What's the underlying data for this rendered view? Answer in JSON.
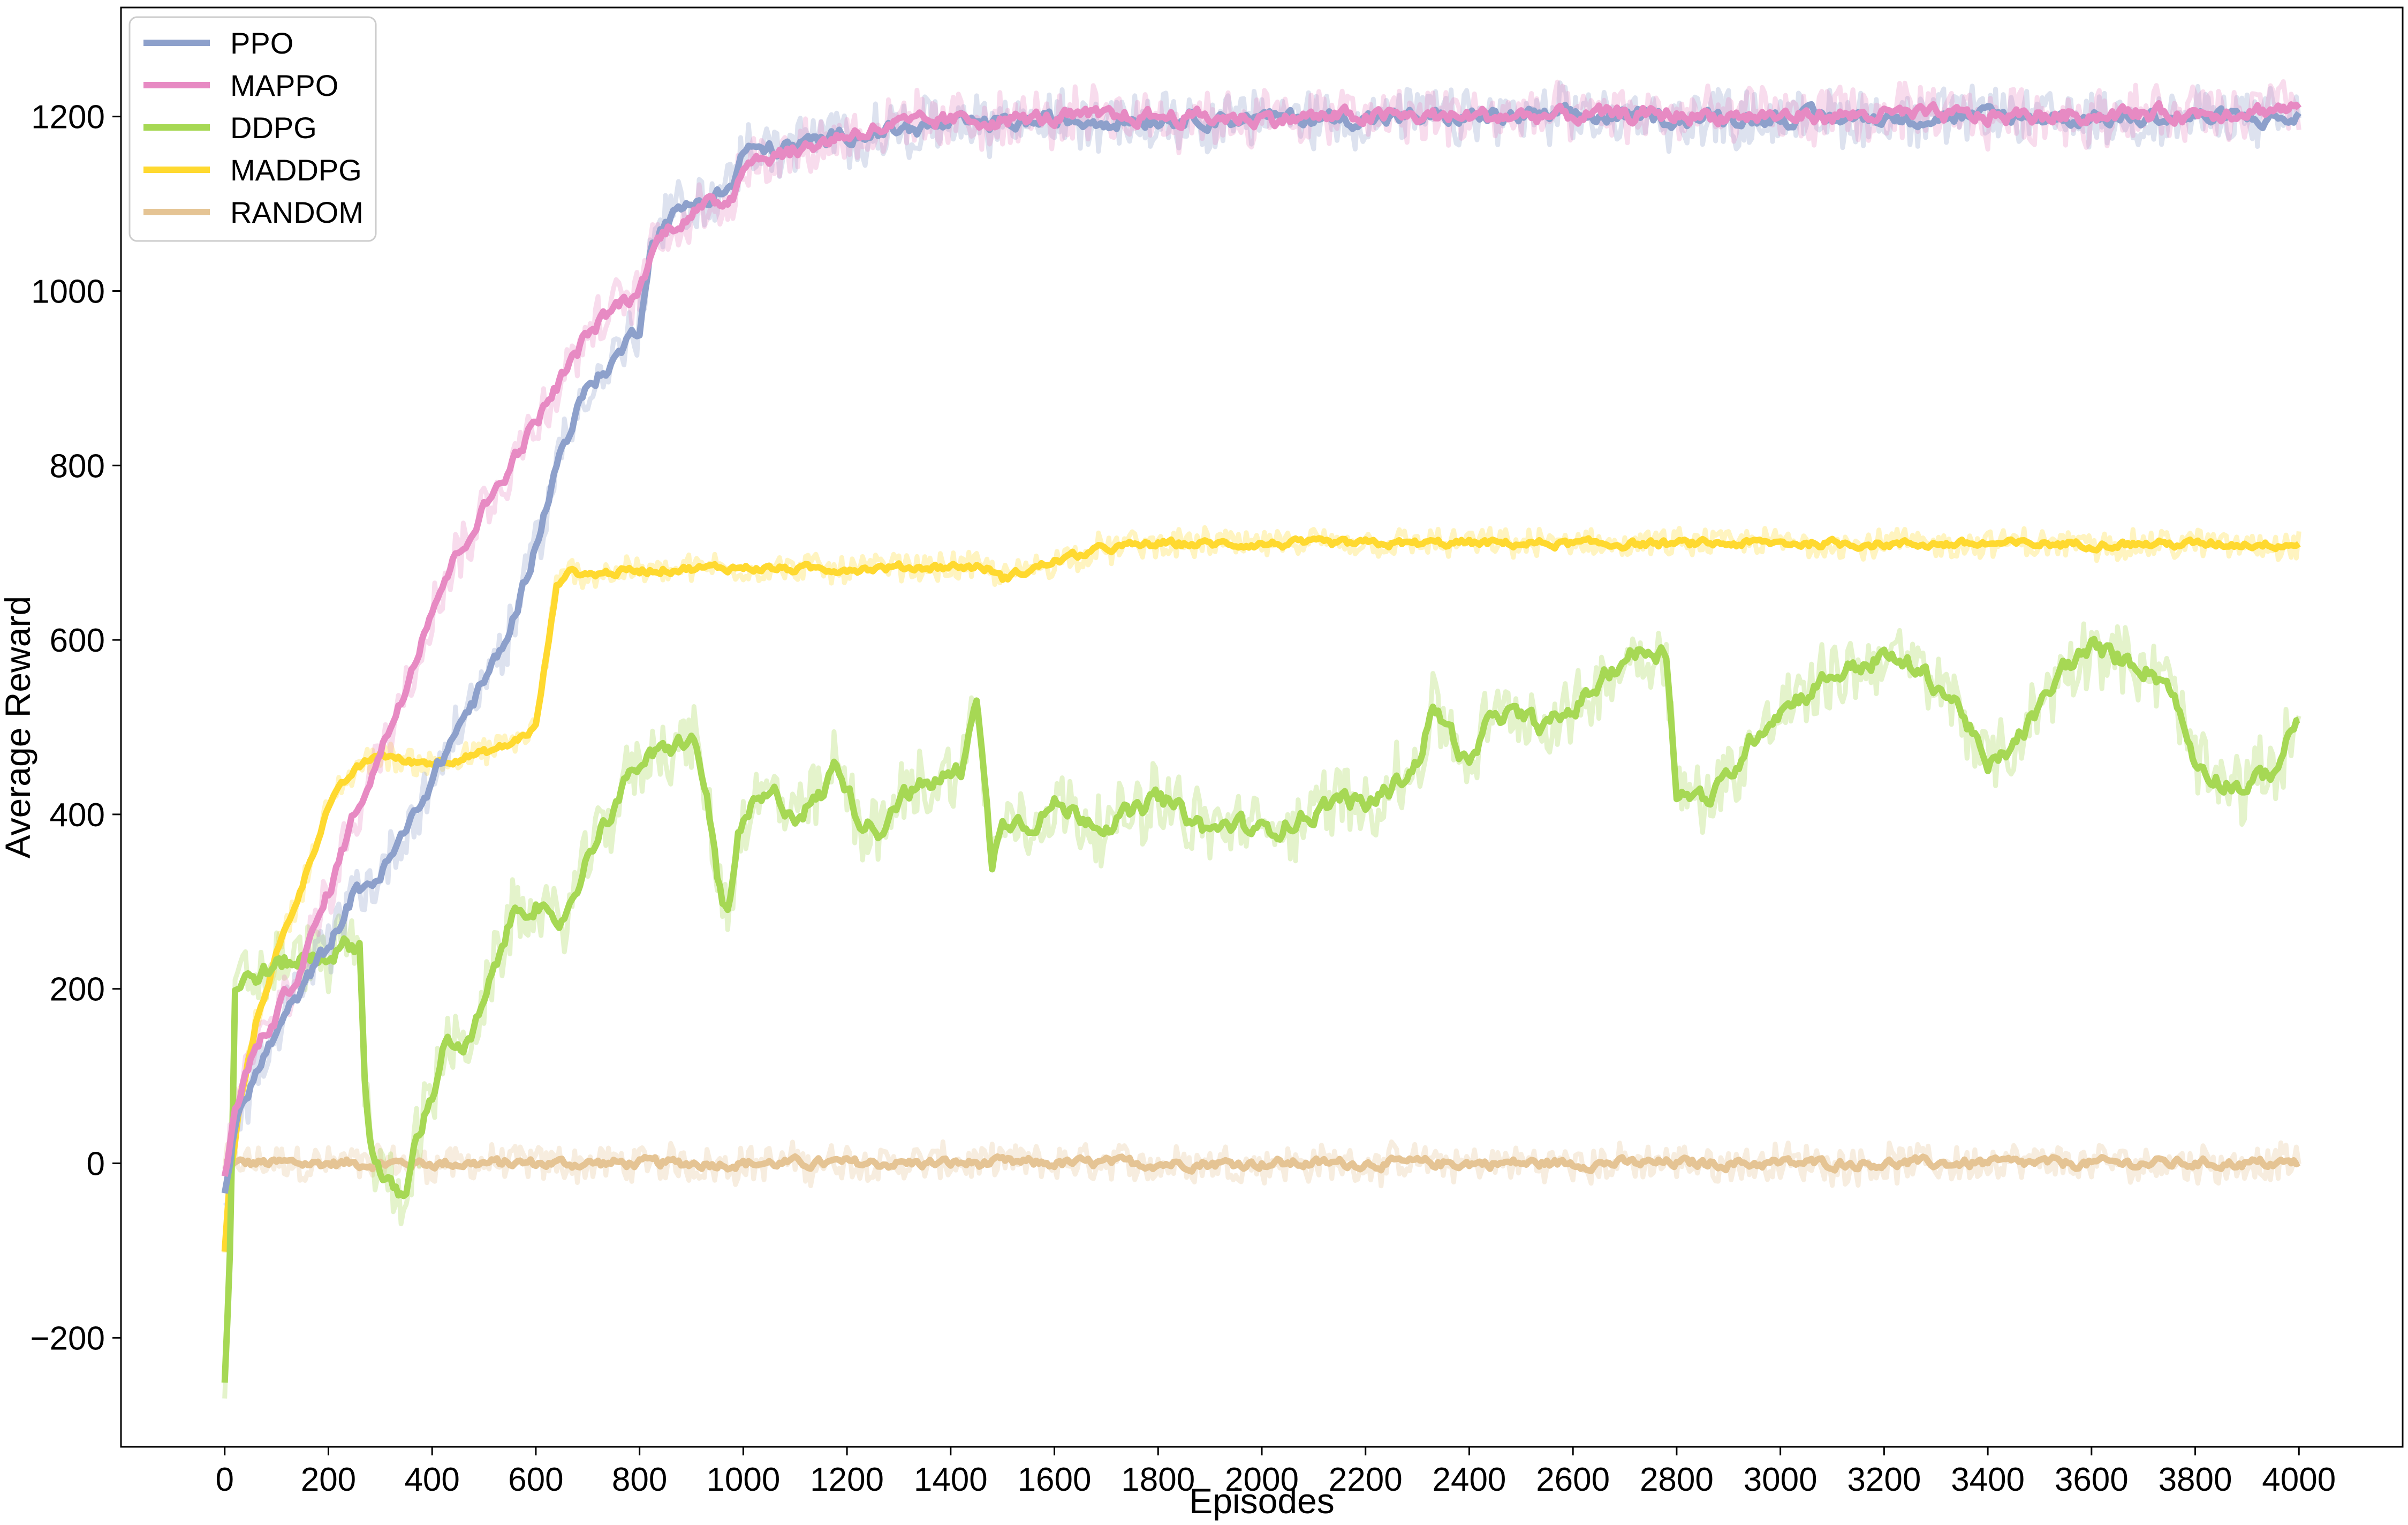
{
  "chart_data": {
    "type": "line",
    "title": "",
    "xlabel": "Episodes",
    "ylabel": "Average Reward",
    "xlim": [
      -200,
      4200
    ],
    "ylim": [
      -325,
      1325
    ],
    "xticks": [
      0,
      200,
      400,
      600,
      800,
      1000,
      1200,
      1400,
      1600,
      1800,
      2000,
      2200,
      2400,
      2600,
      2800,
      3000,
      3200,
      3400,
      3600,
      3800,
      4000
    ],
    "yticks": [
      -200,
      0,
      200,
      400,
      600,
      800,
      1000,
      1200
    ],
    "xtick_labels": [
      "0",
      "200",
      "400",
      "600",
      "800",
      "1000",
      "1200",
      "1400",
      "1600",
      "1800",
      "2000",
      "2200",
      "2400",
      "2600",
      "2800",
      "3000",
      "3200",
      "3400",
      "3600",
      "3800",
      "4000"
    ],
    "ytick_labels": [
      "−200",
      "0",
      "200",
      "400",
      "600",
      "800",
      "1000",
      "1200"
    ],
    "grid": false,
    "legend": "top-left",
    "series": [
      {
        "name": "PPO",
        "color": "#8da0cb",
        "noise": 28,
        "x": [
          0,
          20,
          50,
          100,
          150,
          200,
          250,
          300,
          350,
          400,
          450,
          500,
          550,
          600,
          650,
          700,
          750,
          800,
          820,
          850,
          900,
          950,
          980,
          1000,
          1100,
          1200,
          1300,
          1400,
          1600,
          1800,
          2000,
          2200,
          2400,
          2600,
          2800,
          3000,
          3200,
          3400,
          3600,
          3800,
          4000
        ],
        "y": [
          -30,
          40,
          90,
          150,
          200,
          250,
          310,
          330,
          380,
          440,
          500,
          550,
          610,
          710,
          820,
          890,
          920,
          960,
          1050,
          1080,
          1100,
          1110,
          1120,
          1160,
          1165,
          1180,
          1185,
          1190,
          1195,
          1198,
          1198,
          1198,
          1199,
          1200,
          1198,
          1199,
          1199,
          1200,
          1198,
          1199,
          1197
        ]
      },
      {
        "name": "MAPPO",
        "color": "#e78ac3",
        "noise": 28,
        "x": [
          0,
          20,
          50,
          100,
          150,
          200,
          250,
          300,
          350,
          400,
          450,
          500,
          550,
          600,
          650,
          700,
          750,
          800,
          820,
          850,
          900,
          950,
          980,
          1000,
          1100,
          1200,
          1300,
          1400,
          1600,
          1800,
          2000,
          2200,
          2400,
          2600,
          2800,
          3000,
          3200,
          3400,
          3600,
          3800,
          4000
        ],
        "y": [
          -10,
          60,
          120,
          170,
          230,
          310,
          400,
          470,
          550,
          640,
          700,
          750,
          800,
          850,
          900,
          950,
          980,
          1000,
          1040,
          1070,
          1090,
          1100,
          1110,
          1150,
          1160,
          1180,
          1190,
          1195,
          1198,
          1200,
          1198,
          1200,
          1200,
          1201,
          1202,
          1200,
          1202,
          1200,
          1202,
          1204,
          1210
        ]
      },
      {
        "name": "DDPG",
        "color": "#a6d854",
        "noise": 35,
        "x": [
          0,
          10,
          20,
          40,
          80,
          120,
          160,
          200,
          240,
          260,
          270,
          280,
          300,
          320,
          350,
          370,
          400,
          430,
          460,
          500,
          530,
          560,
          600,
          640,
          680,
          720,
          760,
          800,
          850,
          900,
          930,
          950,
          970,
          990,
          1020,
          1060,
          1100,
          1150,
          1180,
          1220,
          1260,
          1300,
          1340,
          1380,
          1420,
          1440,
          1450,
          1480,
          1500,
          1550,
          1600,
          1650,
          1700,
          1750,
          1800,
          1850,
          1900,
          1950,
          2000,
          2050,
          2100,
          2150,
          2200,
          2250,
          2300,
          2330,
          2360,
          2400,
          2450,
          2500,
          2550,
          2600,
          2650,
          2700,
          2750,
          2780,
          2800,
          2830,
          2870,
          2920,
          2960,
          3000,
          3050,
          3100,
          3150,
          3200,
          3250,
          3300,
          3350,
          3400,
          3450,
          3500,
          3550,
          3600,
          3650,
          3700,
          3750,
          3800,
          3850,
          3900,
          3950,
          4000
        ],
        "y": [
          -250,
          -100,
          200,
          210,
          220,
          230,
          235,
          240,
          250,
          250,
          100,
          30,
          -10,
          -30,
          -40,
          30,
          80,
          150,
          120,
          180,
          240,
          290,
          300,
          260,
          320,
          380,
          420,
          460,
          470,
          490,
          420,
          330,
          280,
          370,
          410,
          420,
          400,
          420,
          460,
          400,
          380,
          420,
          430,
          440,
          450,
          520,
          530,
          340,
          400,
          390,
          410,
          400,
          390,
          400,
          420,
          400,
          380,
          390,
          380,
          390,
          400,
          420,
          410,
          430,
          460,
          520,
          500,
          450,
          520,
          510,
          500,
          520,
          550,
          580,
          590,
          585,
          430,
          420,
          420,
          460,
          500,
          520,
          540,
          560,
          570,
          580,
          570,
          550,
          520,
          450,
          480,
          520,
          570,
          590,
          580,
          570,
          550,
          460,
          440,
          430,
          450,
          510
        ]
      },
      {
        "name": "MADDPG",
        "color": "#ffd92f",
        "noise": 14,
        "x": [
          0,
          10,
          30,
          60,
          100,
          150,
          200,
          250,
          300,
          350,
          400,
          450,
          500,
          550,
          600,
          620,
          640,
          660,
          700,
          800,
          900,
          1000,
          1100,
          1200,
          1300,
          1400,
          1450,
          1480,
          1500,
          1550,
          1600,
          1700,
          1800,
          2000,
          2200,
          2400,
          2600,
          2800,
          3000,
          3200,
          3400,
          3600,
          3800,
          4000
        ],
        "y": [
          -100,
          -20,
          70,
          160,
          240,
          320,
          410,
          450,
          470,
          460,
          460,
          465,
          470,
          480,
          500,
          580,
          660,
          680,
          675,
          680,
          682,
          683,
          681,
          682,
          683,
          684,
          684,
          680,
          670,
          680,
          690,
          705,
          710,
          710,
          710,
          711,
          710,
          710,
          711,
          710,
          710,
          710,
          710,
          710
        ]
      },
      {
        "name": "RANDOM",
        "color": "#e5c494",
        "noise": 18,
        "x": [
          0,
          500,
          1000,
          1500,
          2000,
          2500,
          3000,
          3500,
          4000
        ],
        "y": [
          0,
          0,
          0,
          0,
          0,
          0,
          0,
          0,
          0
        ]
      }
    ]
  }
}
